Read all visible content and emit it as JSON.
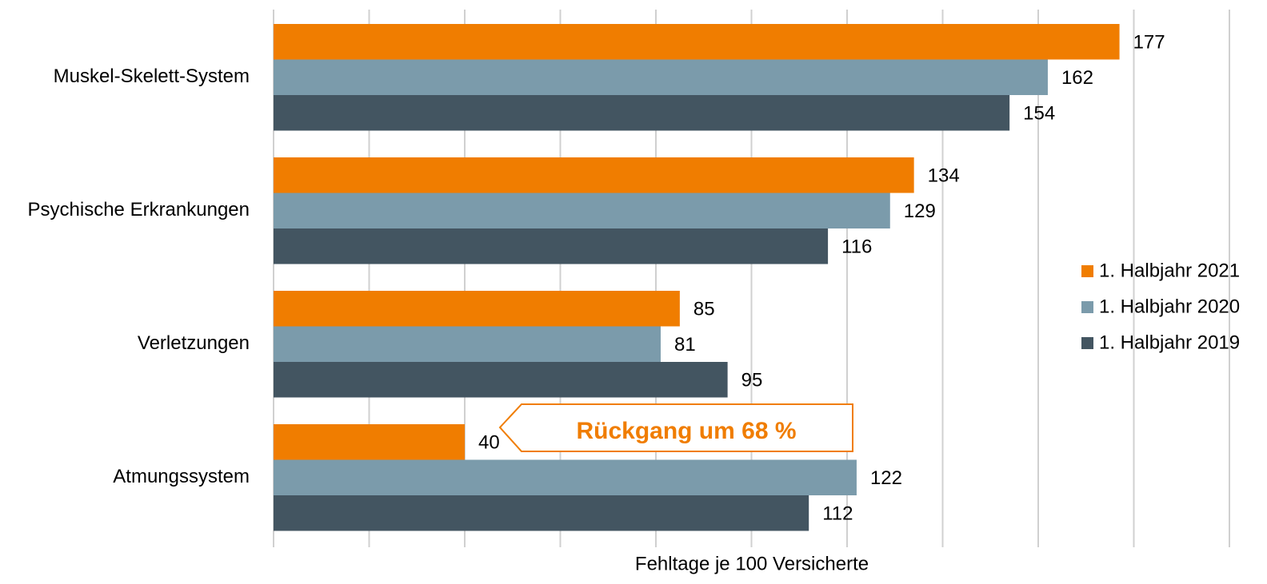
{
  "chart_data": {
    "type": "barh",
    "xlabel": "Fehltage je 100 Versicherte",
    "categories": [
      "Muskel-Skelett-System",
      "Psychische Erkrankungen",
      "Verletzungen",
      "Atmungssystem"
    ],
    "series": [
      {
        "name": "1. Halbjahr 2021",
        "color": "#f07d00",
        "values": [
          177,
          134,
          85,
          40
        ]
      },
      {
        "name": "1. Halbjahr 2020",
        "color": "#7b9bab",
        "values": [
          162,
          129,
          81,
          122
        ]
      },
      {
        "name": "1. Halbjahr 2019",
        "color": "#435561",
        "values": [
          154,
          116,
          95,
          112
        ]
      }
    ],
    "xlim": [
      0,
      200
    ],
    "xticks": [
      0,
      20,
      40,
      60,
      80,
      100,
      120,
      140,
      160,
      180,
      200
    ],
    "grid": true,
    "legend": "right",
    "annotation": "Rückgang um 68 %"
  }
}
